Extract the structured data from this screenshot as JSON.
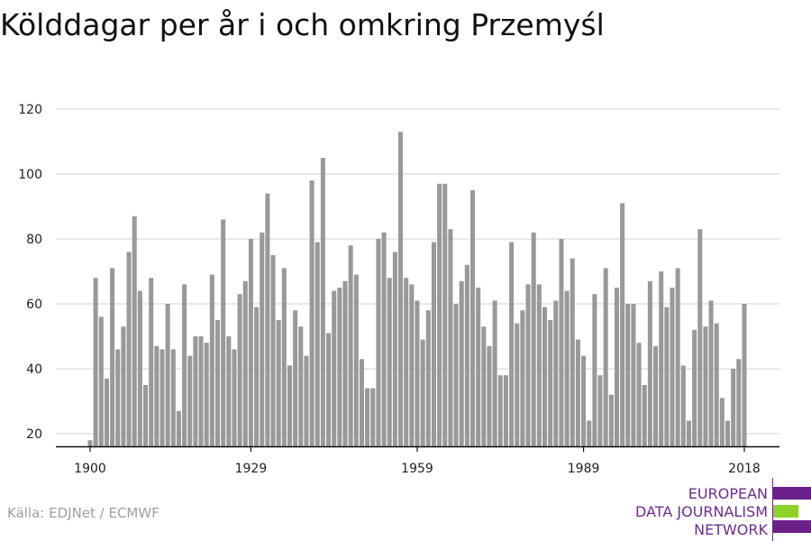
{
  "title": "Kölddagar per år i och omkring Przemyśl",
  "source": "Källa: EDJNet / ECMWF",
  "logo": {
    "line1": "EUROPEAN",
    "line2": "DATA JOURNALISM",
    "line3": "NETWORK",
    "colors": {
      "primary": "#6b2089",
      "accent": "#8fd22a"
    }
  },
  "chart_data": {
    "type": "bar",
    "title": "Kölddagar per år i och omkring Przemyśl",
    "xlabel": "",
    "ylabel": "",
    "ylim": [
      15,
      125
    ],
    "xlim": [
      1900,
      2018
    ],
    "yticks": [
      20,
      40,
      60,
      80,
      100,
      120
    ],
    "xticks": [
      1900,
      1929,
      1959,
      1989,
      2018
    ],
    "grid": true,
    "bar_color": "#999999",
    "x": [
      1900,
      1901,
      1902,
      1903,
      1904,
      1905,
      1906,
      1907,
      1908,
      1909,
      1910,
      1911,
      1912,
      1913,
      1914,
      1915,
      1916,
      1917,
      1918,
      1919,
      1920,
      1921,
      1922,
      1923,
      1924,
      1925,
      1926,
      1927,
      1928,
      1929,
      1930,
      1931,
      1932,
      1933,
      1934,
      1935,
      1936,
      1937,
      1938,
      1939,
      1940,
      1941,
      1942,
      1943,
      1944,
      1945,
      1946,
      1947,
      1948,
      1949,
      1950,
      1951,
      1952,
      1953,
      1954,
      1955,
      1956,
      1957,
      1958,
      1959,
      1960,
      1961,
      1962,
      1963,
      1964,
      1965,
      1966,
      1967,
      1968,
      1969,
      1970,
      1971,
      1972,
      1973,
      1974,
      1975,
      1976,
      1977,
      1978,
      1979,
      1980,
      1981,
      1982,
      1983,
      1984,
      1985,
      1986,
      1987,
      1988,
      1989,
      1990,
      1991,
      1992,
      1993,
      1994,
      1995,
      1996,
      1997,
      1998,
      1999,
      2000,
      2001,
      2002,
      2003,
      2004,
      2005,
      2006,
      2007,
      2008,
      2009,
      2010,
      2011,
      2012,
      2013,
      2014,
      2015,
      2016,
      2017,
      2018
    ],
    "values": [
      18,
      68,
      56,
      37,
      71,
      46,
      53,
      76,
      87,
      64,
      35,
      68,
      47,
      46,
      60,
      46,
      27,
      66,
      44,
      50,
      50,
      48,
      69,
      55,
      86,
      50,
      46,
      63,
      67,
      80,
      59,
      82,
      94,
      75,
      55,
      71,
      41,
      58,
      53,
      44,
      98,
      79,
      105,
      51,
      64,
      65,
      67,
      78,
      69,
      43,
      34,
      34,
      80,
      82,
      68,
      76,
      113,
      68,
      66,
      61,
      49,
      58,
      79,
      97,
      97,
      83,
      60,
      67,
      72,
      95,
      65,
      53,
      47,
      61,
      38,
      38,
      79,
      54,
      58,
      66,
      82,
      66,
      59,
      55,
      61,
      80,
      64,
      74,
      49,
      44,
      24,
      63,
      38,
      71,
      32,
      65,
      91,
      60,
      60,
      48,
      35,
      67,
      47,
      70,
      59,
      65,
      71,
      41,
      24,
      52,
      83,
      53,
      61,
      54,
      31,
      24,
      40,
      43,
      60
    ]
  }
}
